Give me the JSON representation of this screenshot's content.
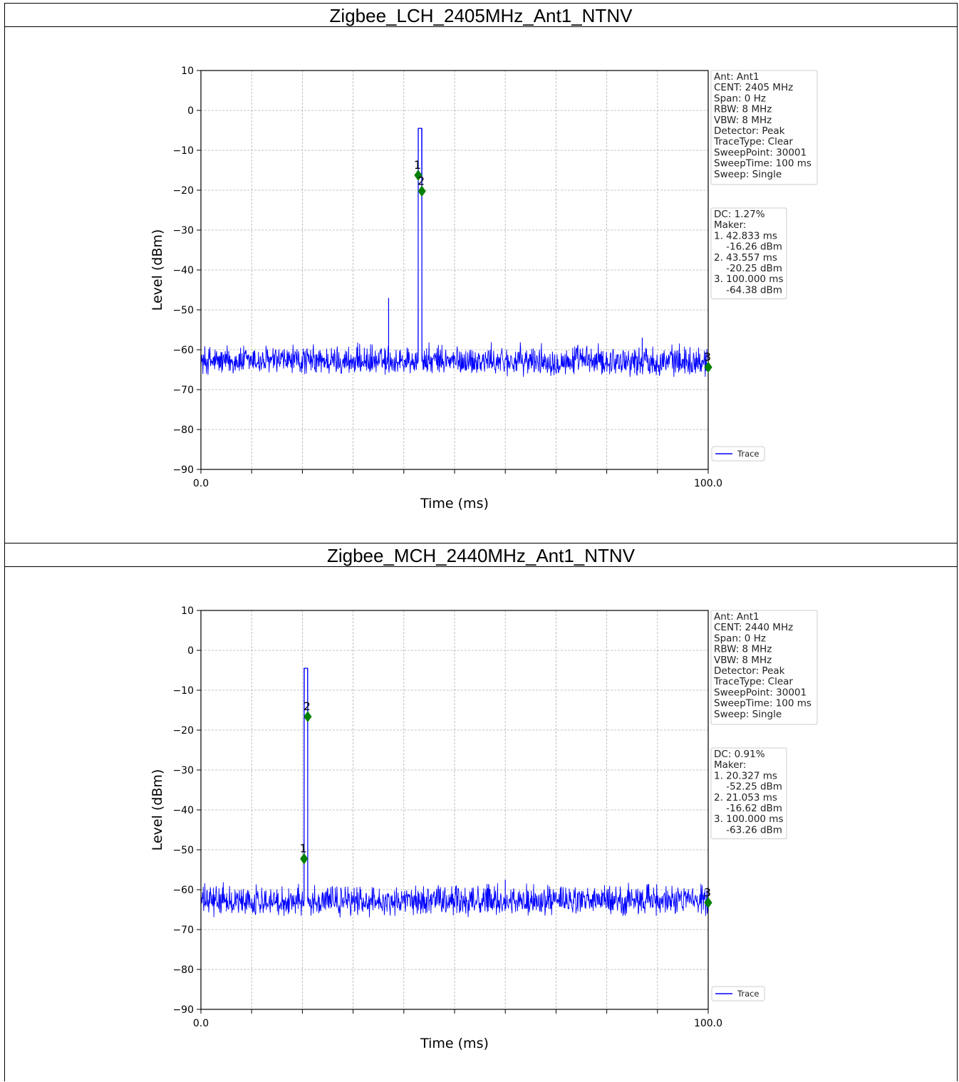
{
  "colors": {
    "trace": "#0000ff",
    "marker": "#008000",
    "grid": "#b0b0b0",
    "axis": "#000000"
  },
  "charts": [
    {
      "title": "Zigbee_LCH_2405MHz_Ant1_NTNV",
      "info": [
        "Ant: Ant1",
        "CENT: 2405 MHz",
        "Span: 0 Hz",
        "RBW: 8 MHz",
        "VBW: 8 MHz",
        "Detector: Peak",
        "TraceType: Clear",
        "SweepPoint: 30001",
        "SweepTime: 100 ms",
        "Sweep: Single"
      ],
      "marker_box": [
        "DC: 1.27%",
        "Maker:",
        "1. 42.833 ms",
        "    -16.26 dBm",
        "2. 43.557 ms",
        "    -20.25 dBm",
        "3. 100.000 ms",
        "    -64.38 dBm"
      ],
      "legend": "Trace"
    },
    {
      "title": "Zigbee_MCH_2440MHz_Ant1_NTNV",
      "info": [
        "Ant: Ant1",
        "CENT: 2440 MHz",
        "Span: 0 Hz",
        "RBW: 8 MHz",
        "VBW: 8 MHz",
        "Detector: Peak",
        "TraceType: Clear",
        "SweepPoint: 30001",
        "SweepTime: 100 ms",
        "Sweep: Single"
      ],
      "marker_box": [
        "DC: 0.91%",
        "Maker:",
        "1. 20.327 ms",
        "    -52.25 dBm",
        "2. 21.053 ms",
        "    -16.62 dBm",
        "3. 100.000 ms",
        "    -63.26 dBm"
      ],
      "legend": "Trace"
    }
  ],
  "chart_data": [
    {
      "type": "line",
      "title": "Zigbee_LCH_2405MHz_Ant1_NTNV",
      "xlabel": "Time (ms)",
      "ylabel": "Level (dBm)",
      "xlim": [
        0,
        100
      ],
      "ylim": [
        -90,
        10
      ],
      "x_tick_labels": [
        "0.0",
        "100.0"
      ],
      "y_ticks": [
        10,
        0,
        -10,
        -20,
        -30,
        -40,
        -50,
        -60,
        -70,
        -80,
        -90
      ],
      "grid": true,
      "legend_position": "lower-right",
      "series": [
        {
          "name": "Trace",
          "noise_floor": {
            "mean": -63,
            "min": -67,
            "max": -58
          },
          "pulses": [
            {
              "start": 42.83,
              "end": 43.56,
              "level": -4.5
            }
          ],
          "spikes": [
            {
              "x": 37.0,
              "y": -47
            },
            {
              "x": 87.0,
              "y": -57
            }
          ]
        }
      ],
      "markers": [
        {
          "label": "1",
          "x": 42.833,
          "y": -16.26
        },
        {
          "label": "2",
          "x": 43.557,
          "y": -20.25
        },
        {
          "label": "3",
          "x": 100.0,
          "y": -64.38
        }
      ]
    },
    {
      "type": "line",
      "title": "Zigbee_MCH_2440MHz_Ant1_NTNV",
      "xlabel": "Time (ms)",
      "ylabel": "Level (dBm)",
      "xlim": [
        0,
        100
      ],
      "ylim": [
        -90,
        10
      ],
      "x_tick_labels": [
        "0.0",
        "100.0"
      ],
      "y_ticks": [
        10,
        0,
        -10,
        -20,
        -30,
        -40,
        -50,
        -60,
        -70,
        -80,
        -90
      ],
      "grid": true,
      "legend_position": "lower-right",
      "series": [
        {
          "name": "Trace",
          "noise_floor": {
            "mean": -63,
            "min": -67,
            "max": -58
          },
          "pulses": [
            {
              "start": 20.33,
              "end": 21.05,
              "level": -4.5
            }
          ],
          "spikes": [
            {
              "x": 60.0,
              "y": -57.5
            }
          ]
        }
      ],
      "markers": [
        {
          "label": "1",
          "x": 20.327,
          "y": -52.25
        },
        {
          "label": "2",
          "x": 21.053,
          "y": -16.62
        },
        {
          "label": "3",
          "x": 100.0,
          "y": -63.26
        }
      ]
    }
  ]
}
